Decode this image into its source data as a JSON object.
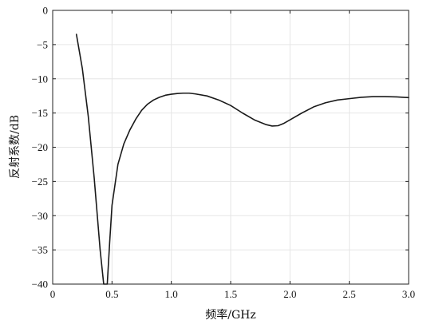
{
  "chart_data": {
    "type": "line",
    "title": "",
    "xlabel": "频率/GHz",
    "ylabel": "反射系数/dB",
    "xlim": [
      0,
      3.0
    ],
    "ylim": [
      -40,
      0
    ],
    "grid": true,
    "x_ticks": [
      "0",
      "0.5",
      "1.0",
      "1.5",
      "2.0",
      "2.5",
      "3.0"
    ],
    "y_ticks": [
      "0",
      "−5",
      "−10",
      "−15",
      "−20",
      "−25",
      "−30",
      "−35",
      "−40"
    ],
    "line_color": "#1a1a1a",
    "series": [
      {
        "x": [
          0.2,
          0.25,
          0.3,
          0.35,
          0.4,
          0.43,
          0.445,
          0.46,
          0.48,
          0.5,
          0.55,
          0.6,
          0.65,
          0.7,
          0.75,
          0.8,
          0.85,
          0.9,
          0.95,
          1.0,
          1.05,
          1.1,
          1.15,
          1.2,
          1.3,
          1.4,
          1.5,
          1.6,
          1.7,
          1.8,
          1.85,
          1.9,
          1.95,
          2.0,
          2.1,
          2.2,
          2.3,
          2.4,
          2.5,
          2.6,
          2.7,
          2.8,
          2.9,
          3.0
        ],
        "y": [
          -3.5,
          -8.5,
          -15.5,
          -24.5,
          -35,
          -42,
          -45,
          -40,
          -34,
          -28.5,
          -22.5,
          -19.5,
          -17.5,
          -15.9,
          -14.6,
          -13.7,
          -13.1,
          -12.7,
          -12.4,
          -12.25,
          -12.15,
          -12.1,
          -12.1,
          -12.2,
          -12.5,
          -13.1,
          -13.9,
          -15.0,
          -16.0,
          -16.7,
          -16.9,
          -16.85,
          -16.5,
          -16.0,
          -15.0,
          -14.1,
          -13.5,
          -13.1,
          -12.9,
          -12.7,
          -12.6,
          -12.6,
          -12.65,
          -12.75
        ]
      }
    ]
  }
}
